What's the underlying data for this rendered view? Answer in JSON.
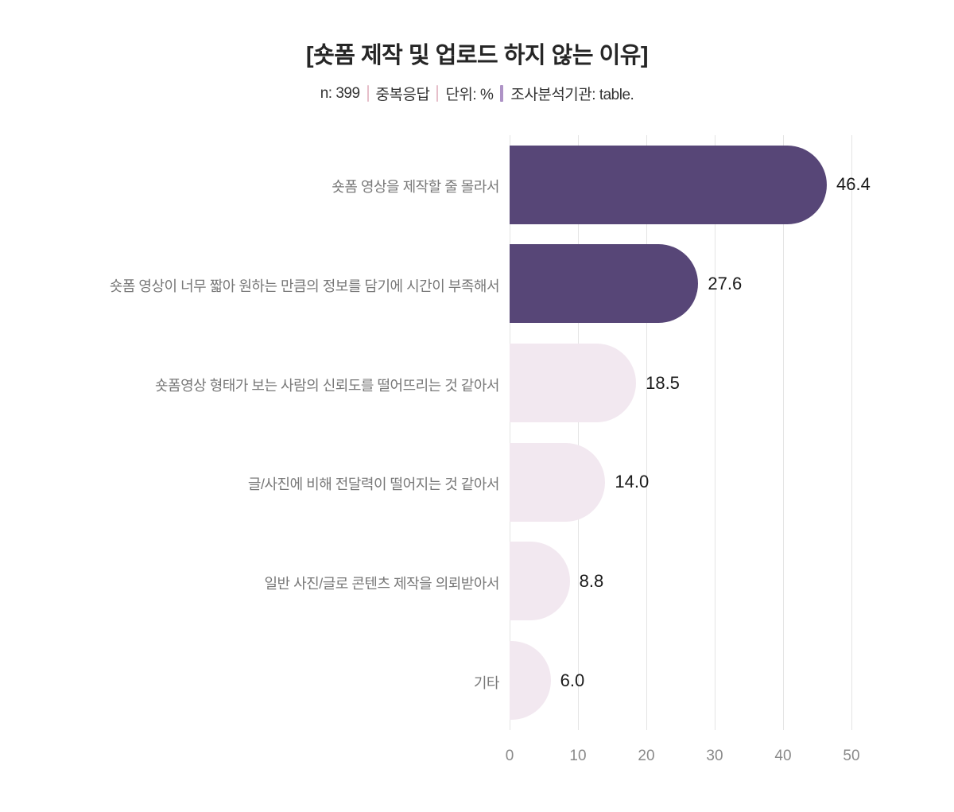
{
  "header": {
    "title": "[숏폼 제작 및 업로드 하지 않는 이유]"
  },
  "chart_data": {
    "type": "bar",
    "orientation": "horizontal",
    "title": "[숏폼 제작 및 업로드 하지 않는 이유]",
    "subtitle_parts": [
      "n: 399",
      "중복응답",
      "단위: %",
      "조사분석기관: table."
    ],
    "categories": [
      "숏폼 영상을 제작할 줄 몰라서",
      "숏폼 영상이 너무 짧아 원하는 만큼의 정보를 담기에 시간이 부족해서",
      "숏폼영상 형태가 보는 사람의 신뢰도를 떨어뜨리는 것 같아서",
      "글/사진에 비해 전달력이 떨어지는 것 같아서",
      "일반 사진/글로 콘텐츠 제작을 의뢰받아서",
      "기타"
    ],
    "values": [
      46.4,
      27.6,
      18.5,
      14.0,
      8.8,
      6.0
    ],
    "value_labels": [
      "46.4",
      "27.6",
      "18.5",
      "14.0",
      "8.8",
      "6.0"
    ],
    "bar_styles": [
      "dark",
      "dark",
      "light",
      "light",
      "light",
      "light"
    ],
    "x_ticks": [
      0,
      10,
      20,
      30,
      40,
      50
    ],
    "xlim": [
      0,
      50
    ],
    "grid": true,
    "legend": "none",
    "xlabel": "",
    "ylabel": ""
  },
  "colors": {
    "bar_dark": "#574677",
    "bar_light": "#f2e8f0",
    "gridline": "#e4e4e4",
    "category_label": "#787878",
    "tick_label": "#8a8a8a",
    "value_label": "#1a1a1a",
    "title": "#262626",
    "subtitle_text": "#333333",
    "separator_pink": "#e6bfca",
    "separator_purple": "#ae93c6"
  }
}
